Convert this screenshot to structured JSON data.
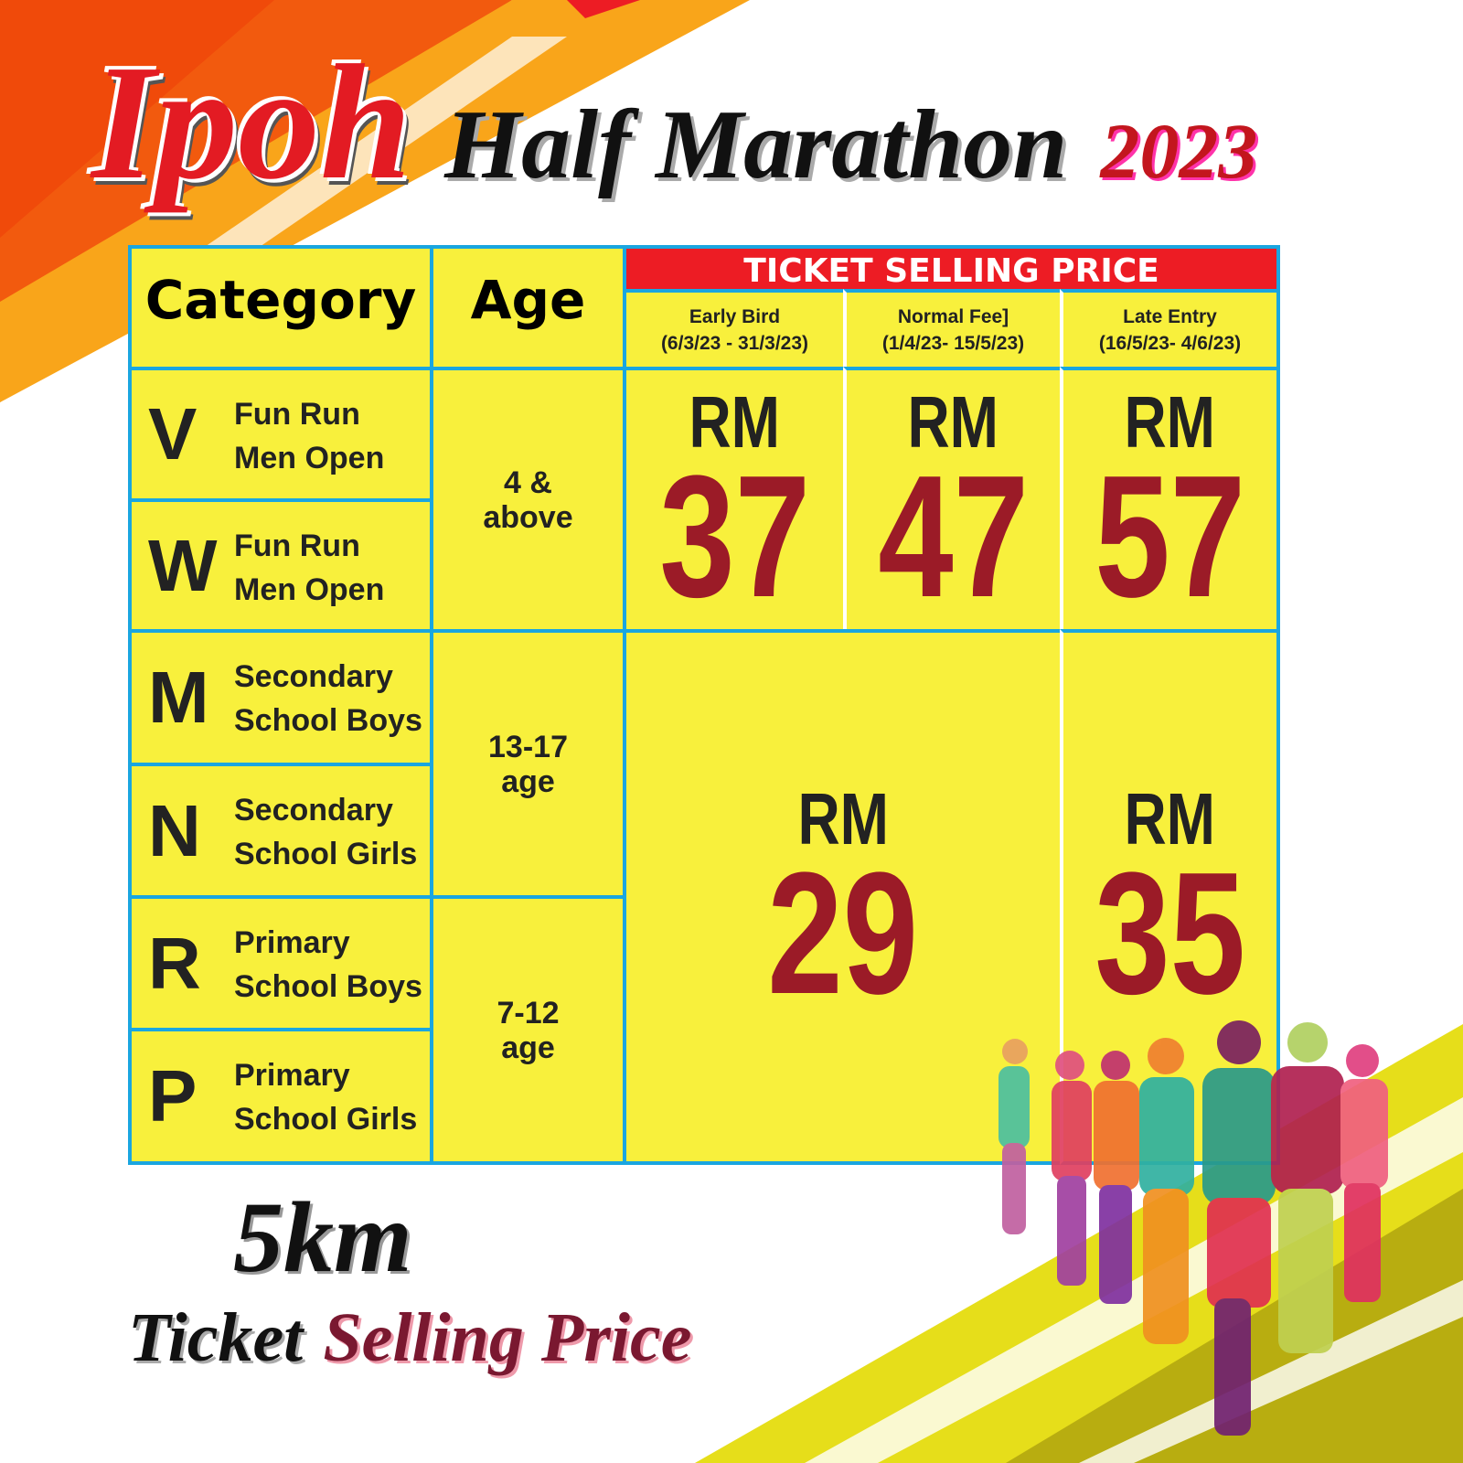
{
  "title": {
    "word1": "Ipoh",
    "word2": "Half Marathon",
    "year": "2023"
  },
  "table": {
    "headers": {
      "category": "Category",
      "age": "Age",
      "price": "TICKET SELLING PRICE"
    },
    "periods": [
      {
        "name": "Early Bird",
        "dates": "(6/3/23 - 31/3/23)"
      },
      {
        "name": "Normal Fee]",
        "dates": "(1/4/23- 15/5/23)"
      },
      {
        "name": "Late Entry",
        "dates": "(16/5/23- 4/6/23)"
      }
    ],
    "categories": [
      {
        "code": "V",
        "line1": "Fun Run",
        "line2": "Men Open"
      },
      {
        "code": "W",
        "line1": "Fun Run",
        "line2": "Men Open"
      },
      {
        "code": "M",
        "line1": "Secondary",
        "line2": "School Boys"
      },
      {
        "code": "N",
        "line1": "Secondary",
        "line2": "School Girls"
      },
      {
        "code": "R",
        "line1": "Primary",
        "line2": "School Boys"
      },
      {
        "code": "P",
        "line1": "Primary",
        "line2": "School Girls"
      }
    ],
    "ages": [
      {
        "line1": "4 &",
        "line2": "above"
      },
      {
        "line1": "13-17",
        "line2": "age"
      },
      {
        "line1": "7-12",
        "line2": "age"
      }
    ],
    "currency": "RM",
    "prices": {
      "open_early": "37",
      "open_normal": "47",
      "open_late": "57",
      "school_early_normal": "29",
      "school_late": "35"
    }
  },
  "footer": {
    "distance": "5km",
    "line_a": "Ticket",
    "line_b": "Selling Price"
  },
  "colors": {
    "yellow": "#f8f03c",
    "blue": "#1aa6e0",
    "red": "#ed1c24",
    "price": "#9b1b27"
  }
}
